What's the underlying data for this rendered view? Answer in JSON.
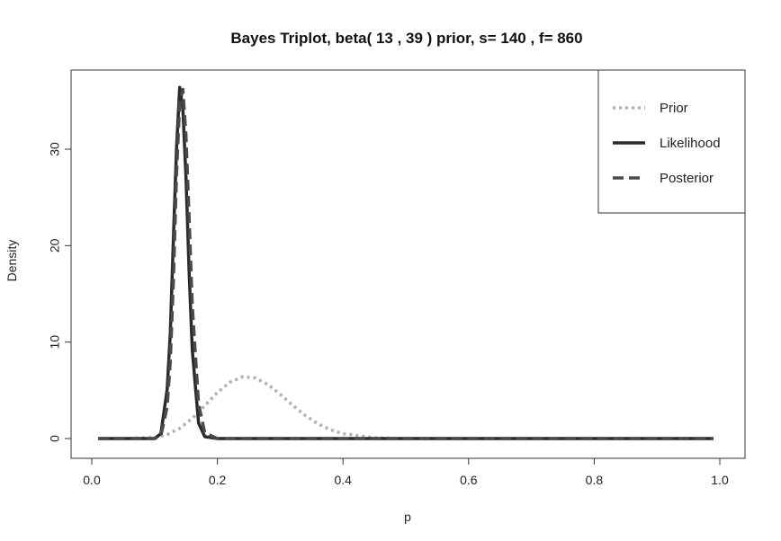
{
  "chart_data": {
    "type": "line",
    "title": "Bayes Triplot, beta( 13 , 39 ) prior, s= 140 , f= 860",
    "xlabel": "p",
    "ylabel": "Density",
    "xlim": [
      0.0,
      1.0
    ],
    "ylim": [
      0,
      37
    ],
    "x_ticks": [
      "0.0",
      "0.2",
      "0.4",
      "0.6",
      "0.8",
      "1.0"
    ],
    "y_ticks": [
      "0",
      "10",
      "20",
      "30"
    ],
    "legend_position": "top-right",
    "series": [
      {
        "name": "Prior",
        "style": "dotted",
        "color": "#b0b0b0",
        "x": [
          0.01,
          0.05,
          0.1,
          0.12,
          0.14,
          0.16,
          0.18,
          0.2,
          0.22,
          0.24,
          0.26,
          0.28,
          0.3,
          0.32,
          0.34,
          0.36,
          0.38,
          0.4,
          0.45,
          0.5,
          0.6,
          0.8,
          0.99
        ],
        "y": [
          0.0,
          0.0,
          0.11,
          0.41,
          1.06,
          2.09,
          3.41,
          4.77,
          5.85,
          6.39,
          6.29,
          5.62,
          4.59,
          3.45,
          2.39,
          1.53,
          0.91,
          0.5,
          0.08,
          0.01,
          0.0,
          0.0,
          0.0
        ]
      },
      {
        "name": "Likelihood",
        "style": "solid",
        "color": "#2a2a2a",
        "x": [
          0.01,
          0.1,
          0.11,
          0.12,
          0.125,
          0.13,
          0.135,
          0.14,
          0.145,
          0.15,
          0.155,
          0.16,
          0.17,
          0.18,
          0.2,
          0.4,
          0.6,
          0.8,
          0.99
        ],
        "y": [
          0.0,
          0.0,
          0.5,
          5.1,
          11.0,
          20.7,
          30.1,
          36.4,
          34.3,
          27.1,
          17.3,
          9.2,
          1.6,
          0.2,
          0.0,
          0.0,
          0.0,
          0.0,
          0.0
        ]
      },
      {
        "name": "Posterior",
        "style": "dashed",
        "color": "#4a4a4a",
        "x": [
          0.01,
          0.1,
          0.11,
          0.12,
          0.125,
          0.13,
          0.135,
          0.14,
          0.145,
          0.15,
          0.155,
          0.16,
          0.17,
          0.18,
          0.2,
          0.4,
          0.6,
          0.8,
          0.99
        ],
        "y": [
          0.0,
          0.0,
          0.3,
          3.3,
          8.0,
          16.3,
          27.4,
          34.7,
          36.2,
          31.4,
          22.9,
          13.8,
          3.6,
          0.6,
          0.0,
          0.0,
          0.0,
          0.0,
          0.0
        ]
      }
    ]
  }
}
